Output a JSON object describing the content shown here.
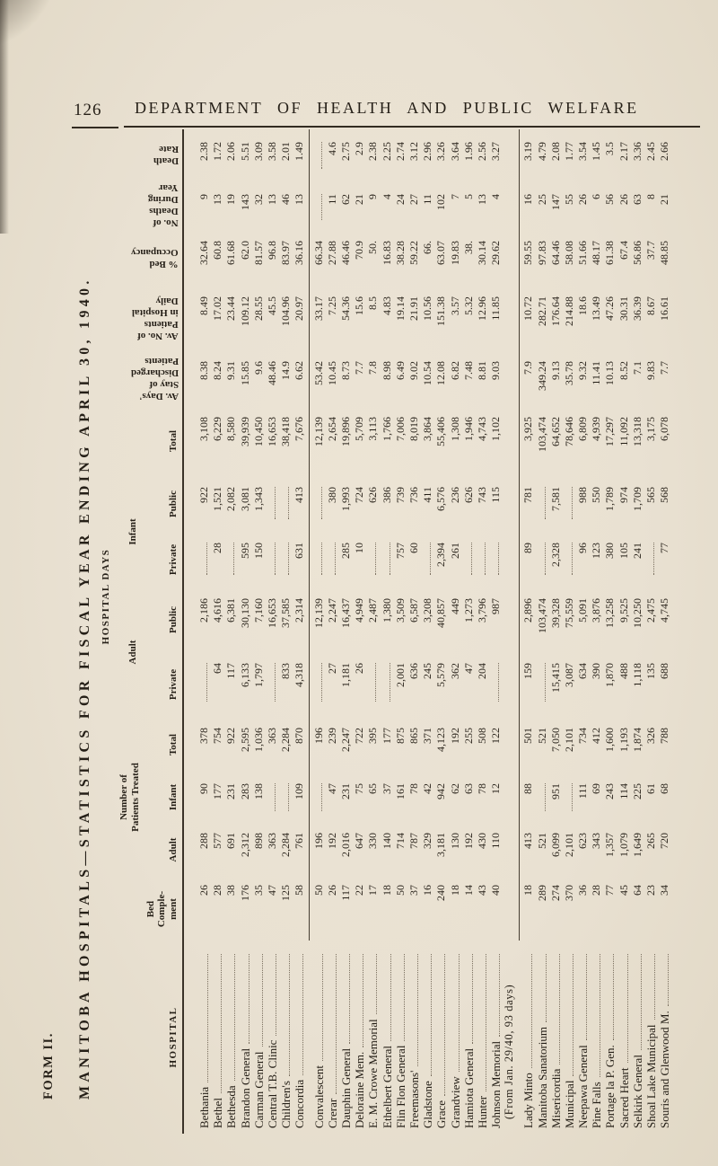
{
  "page": {
    "number": "126",
    "header": "DEPARTMENT OF HEALTH AND PUBLIC WELFARE"
  },
  "form_label": "FORM II.",
  "table_title": "MANITOBA HOSPITALS—STATISTICS FOR FISCAL YEAR ENDING APRIL 30, 1940.",
  "columns": {
    "hospital": "HOSPITAL",
    "bed": "Bed\nComple-\nment",
    "patients_group": "Number of\nPatients Treated",
    "adult": "Adult",
    "infant": "Infant",
    "total": "Total",
    "days_group": "HOSPITAL DAYS",
    "days_adult": "Adult",
    "days_infant": "Infant",
    "private": "Private",
    "public": "Public",
    "days_total": "Total",
    "av_stay": "Av. Days'\nStay of\nDischarged\nPatients",
    "av_daily": "Av. No. of\nPatients\nin Hospital\nDaily",
    "occupancy": "% Bed\nOccupancy",
    "deaths": "No. of\nDeaths\nDuring\nYear",
    "death_rate": "Death\nRate"
  },
  "table": {
    "rows": [
      {
        "group": 1,
        "name": "Bethania",
        "bed": "26",
        "pat_adult": "288",
        "pat_infant": "90",
        "pat_total": "378",
        "dap": "",
        "dapu": "2,186",
        "dip": "",
        "dipu": "922",
        "dtot": "3,108",
        "stay": "8.38",
        "daily": "8.49",
        "occ": "32.64",
        "deaths": "9",
        "rate": "2.38"
      },
      {
        "group": 1,
        "name": "Bethel",
        "bed": "28",
        "pat_adult": "577",
        "pat_infant": "177",
        "pat_total": "754",
        "dap": "64",
        "dapu": "4,616",
        "dip": "28",
        "dipu": "1,521",
        "dtot": "6,229",
        "stay": "8.24",
        "daily": "17.02",
        "occ": "60.8",
        "deaths": "13",
        "rate": "1.72"
      },
      {
        "group": 1,
        "name": "Bethesda",
        "bed": "38",
        "pat_adult": "691",
        "pat_infant": "231",
        "pat_total": "922",
        "dap": "117",
        "dapu": "6,381",
        "dip": "",
        "dipu": "2,082",
        "dtot": "8,580",
        "stay": "9.31",
        "daily": "23.44",
        "occ": "61.68",
        "deaths": "19",
        "rate": "2.06"
      },
      {
        "group": 1,
        "name": "Brandon General",
        "bed": "176",
        "pat_adult": "2,312",
        "pat_infant": "283",
        "pat_total": "2,595",
        "dap": "6,133",
        "dapu": "30,130",
        "dip": "595",
        "dipu": "3,081",
        "dtot": "39,939",
        "stay": "15.85",
        "daily": "109.12",
        "occ": "62.0",
        "deaths": "143",
        "rate": "5.51"
      },
      {
        "group": 1,
        "name": "Carman General",
        "bed": "35",
        "pat_adult": "898",
        "pat_infant": "138",
        "pat_total": "1,036",
        "dap": "1,797",
        "dapu": "7,160",
        "dip": "150",
        "dipu": "1,343",
        "dtot": "10,450",
        "stay": "9.6",
        "daily": "28.55",
        "occ": "81.57",
        "deaths": "32",
        "rate": "3.09"
      },
      {
        "group": 1,
        "name": "Central T.B. Clinic",
        "bed": "47",
        "pat_adult": "363",
        "pat_infant": "",
        "pat_total": "363",
        "dap": "",
        "dapu": "16,653",
        "dip": "",
        "dipu": "",
        "dtot": "16,653",
        "stay": "48.46",
        "daily": "45.5",
        "occ": "96.8",
        "deaths": "13",
        "rate": "3.58"
      },
      {
        "group": 1,
        "name": "Children's",
        "bed": "125",
        "pat_adult": "2,284",
        "pat_infant": "",
        "pat_total": "2,284",
        "dap": "833",
        "dapu": "37,585",
        "dip": "",
        "dipu": "",
        "dtot": "38,418",
        "stay": "14.9",
        "daily": "104.96",
        "occ": "83.97",
        "deaths": "46",
        "rate": "2.01"
      },
      {
        "group": 1,
        "name": "Concordia",
        "bed": "58",
        "pat_adult": "761",
        "pat_infant": "109",
        "pat_total": "870",
        "dap": "4,318",
        "dapu": "2,314",
        "dip": "631",
        "dipu": "413",
        "dtot": "7,676",
        "stay": "6.62",
        "daily": "20.97",
        "occ": "36.16",
        "deaths": "13",
        "rate": "1.49"
      },
      {
        "group": 2,
        "name": "Convalescent",
        "bed": "50",
        "pat_adult": "196",
        "pat_infant": "",
        "pat_total": "196",
        "dap": "",
        "dapu": "12,139",
        "dip": "",
        "dipu": "",
        "dtot": "12,139",
        "stay": "53.42",
        "daily": "33.17",
        "occ": "66.34",
        "deaths": "",
        "rate": ""
      },
      {
        "group": 2,
        "name": "Crerar",
        "bed": "26",
        "pat_adult": "192",
        "pat_infant": "47",
        "pat_total": "239",
        "dap": "27",
        "dapu": "2,247",
        "dip": "",
        "dipu": "380",
        "dtot": "2,654",
        "stay": "10.45",
        "daily": "7.25",
        "occ": "27.88",
        "deaths": "11",
        "rate": "4.6"
      },
      {
        "group": 2,
        "name": "Dauphin General",
        "bed": "117",
        "pat_adult": "2,016",
        "pat_infant": "231",
        "pat_total": "2,247",
        "dap": "1,181",
        "dapu": "16,437",
        "dip": "285",
        "dipu": "1,993",
        "dtot": "19,896",
        "stay": "8.73",
        "daily": "54.36",
        "occ": "46.46",
        "deaths": "62",
        "rate": "2.75"
      },
      {
        "group": 2,
        "name": "Deloraine Mem.",
        "bed": "22",
        "pat_adult": "647",
        "pat_infant": "75",
        "pat_total": "722",
        "dap": "26",
        "dapu": "4,949",
        "dip": "10",
        "dipu": "724",
        "dtot": "5,709",
        "stay": "7.7",
        "daily": "15.6",
        "occ": "70.9",
        "deaths": "21",
        "rate": "2.9"
      },
      {
        "group": 2,
        "name": "E. M. Crowe Memorial",
        "bed": "17",
        "pat_adult": "330",
        "pat_infant": "65",
        "pat_total": "395",
        "dap": "",
        "dapu": "2,487",
        "dip": "",
        "dipu": "626",
        "dtot": "3,113",
        "stay": "7.8",
        "daily": "8.5",
        "occ": "50.",
        "deaths": "9",
        "rate": "2.38"
      },
      {
        "group": 2,
        "name": "Ethelbert General",
        "bed": "18",
        "pat_adult": "140",
        "pat_infant": "37",
        "pat_total": "177",
        "dap": "",
        "dapu": "1,380",
        "dip": "",
        "dipu": "386",
        "dtot": "1,766",
        "stay": "8.98",
        "daily": "4.83",
        "occ": "16.83",
        "deaths": "4",
        "rate": "2.25"
      },
      {
        "group": 2,
        "name": "Flin Flon General",
        "bed": "50",
        "pat_adult": "714",
        "pat_infant": "161",
        "pat_total": "875",
        "dap": "2,001",
        "dapu": "3,509",
        "dip": "757",
        "dipu": "739",
        "dtot": "7,006",
        "stay": "6.49",
        "daily": "19.14",
        "occ": "38.28",
        "deaths": "24",
        "rate": "2.74"
      },
      {
        "group": 2,
        "name": "Freemasons'",
        "bed": "37",
        "pat_adult": "787",
        "pat_infant": "78",
        "pat_total": "865",
        "dap": "636",
        "dapu": "6,587",
        "dip": "60",
        "dipu": "736",
        "dtot": "8,019",
        "stay": "9.02",
        "daily": "21.91",
        "occ": "59.22",
        "deaths": "27",
        "rate": "3.12"
      },
      {
        "group": 2,
        "name": "Gladstone",
        "bed": "16",
        "pat_adult": "329",
        "pat_infant": "42",
        "pat_total": "371",
        "dap": "245",
        "dapu": "3,208",
        "dip": "",
        "dipu": "411",
        "dtot": "3,864",
        "stay": "10.54",
        "daily": "10.56",
        "occ": "66.",
        "deaths": "11",
        "rate": "2.96"
      },
      {
        "group": 2,
        "name": "Grace",
        "bed": "240",
        "pat_adult": "3,181",
        "pat_infant": "942",
        "pat_total": "4,123",
        "dap": "5,579",
        "dapu": "40,857",
        "dip": "2,394",
        "dipu": "6,576",
        "dtot": "55,406",
        "stay": "12.08",
        "daily": "151.38",
        "occ": "63.07",
        "deaths": "102",
        "rate": "3.26"
      },
      {
        "group": 2,
        "name": "Grandview",
        "bed": "18",
        "pat_adult": "130",
        "pat_infant": "62",
        "pat_total": "192",
        "dap": "362",
        "dapu": "449",
        "dip": "261",
        "dipu": "236",
        "dtot": "1,308",
        "stay": "6.82",
        "daily": "3.57",
        "occ": "19.83",
        "deaths": "7",
        "rate": "3.64"
      },
      {
        "group": 2,
        "name": "Hamiota General",
        "bed": "14",
        "pat_adult": "192",
        "pat_infant": "63",
        "pat_total": "255",
        "dap": "47",
        "dapu": "1,273",
        "dip": "",
        "dipu": "626",
        "dtot": "1,946",
        "stay": "7.48",
        "daily": "5.32",
        "occ": "38.",
        "deaths": "5",
        "rate": "1.96"
      },
      {
        "group": 2,
        "name": "Hunter",
        "bed": "43",
        "pat_adult": "430",
        "pat_infant": "78",
        "pat_total": "508",
        "dap": "204",
        "dapu": "3,796",
        "dip": "",
        "dipu": "743",
        "dtot": "4,743",
        "stay": "8.81",
        "daily": "12.96",
        "occ": "30.14",
        "deaths": "13",
        "rate": "2.56"
      },
      {
        "group": 2,
        "name": "Johnson Memorial",
        "note": "(From Jan. 29/40, 93 days)",
        "bed": "40",
        "pat_adult": "110",
        "pat_infant": "12",
        "pat_total": "122",
        "dap": "",
        "dapu": "987",
        "dip": "",
        "dipu": "115",
        "dtot": "1,102",
        "stay": "9.03",
        "daily": "11.85",
        "occ": "29.62",
        "deaths": "4",
        "rate": "3.27"
      },
      {
        "group": 3,
        "name": "Lady Minto",
        "bed": "18",
        "pat_adult": "413",
        "pat_infant": "88",
        "pat_total": "501",
        "dap": "159",
        "dapu": "2,896",
        "dip": "89",
        "dipu": "781",
        "dtot": "3,925",
        "stay": "7.9",
        "daily": "10.72",
        "occ": "59.55",
        "deaths": "16",
        "rate": "3.19"
      },
      {
        "group": 3,
        "name": "Manitoba Sanatorium",
        "bed": "289",
        "pat_adult": "521",
        "pat_infant": "",
        "pat_total": "521",
        "dap": "",
        "dapu": "103,474",
        "dip": "",
        "dipu": "",
        "dtot": "103,474",
        "stay": "349.24",
        "daily": "282.71",
        "occ": "97.83",
        "deaths": "25",
        "rate": "4.79"
      },
      {
        "group": 3,
        "name": "Misericordia",
        "bed": "274",
        "pat_adult": "6,099",
        "pat_infant": "951",
        "pat_total": "7,050",
        "dap": "15,415",
        "dapu": "39,328",
        "dip": "2,328",
        "dipu": "7,581",
        "dtot": "64,652",
        "stay": "9.13",
        "daily": "176.64",
        "occ": "64.46",
        "deaths": "147",
        "rate": "2.08"
      },
      {
        "group": 3,
        "name": "Municipal",
        "bed": "370",
        "pat_adult": "2,101",
        "pat_infant": "",
        "pat_total": "2,101",
        "dap": "3,087",
        "dapu": "75,559",
        "dip": "",
        "dipu": "",
        "dtot": "78,646",
        "stay": "35.78",
        "daily": "214.88",
        "occ": "58.08",
        "deaths": "55",
        "rate": "1.77"
      },
      {
        "group": 3,
        "name": "Neepawa General",
        "bed": "36",
        "pat_adult": "623",
        "pat_infant": "111",
        "pat_total": "734",
        "dap": "634",
        "dapu": "5,091",
        "dip": "96",
        "dipu": "988",
        "dtot": "6,809",
        "stay": "9.32",
        "daily": "18.6",
        "occ": "51.66",
        "deaths": "26",
        "rate": "3.54"
      },
      {
        "group": 3,
        "name": "Pine Falls",
        "bed": "28",
        "pat_adult": "343",
        "pat_infant": "69",
        "pat_total": "412",
        "dap": "390",
        "dapu": "3,876",
        "dip": "123",
        "dipu": "550",
        "dtot": "4,939",
        "stay": "11.41",
        "daily": "13.49",
        "occ": "48.17",
        "deaths": "6",
        "rate": "1.45"
      },
      {
        "group": 3,
        "name": "Portage la P. Gen.",
        "bed": "77",
        "pat_adult": "1,357",
        "pat_infant": "243",
        "pat_total": "1,600",
        "dap": "1,870",
        "dapu": "13,258",
        "dip": "380",
        "dipu": "1,789",
        "dtot": "17,297",
        "stay": "10.13",
        "daily": "47.26",
        "occ": "61.38",
        "deaths": "56",
        "rate": "3.5"
      },
      {
        "group": 3,
        "name": "Sacred Heart",
        "bed": "45",
        "pat_adult": "1,079",
        "pat_infant": "114",
        "pat_total": "1,193",
        "dap": "488",
        "dapu": "9,525",
        "dip": "105",
        "dipu": "974",
        "dtot": "11,092",
        "stay": "8.52",
        "daily": "30.31",
        "occ": "67.4",
        "deaths": "26",
        "rate": "2.17"
      },
      {
        "group": 3,
        "name": "Selkirk General",
        "bed": "64",
        "pat_adult": "1,649",
        "pat_infant": "225",
        "pat_total": "1,874",
        "dap": "1,118",
        "dapu": "10,250",
        "dip": "241",
        "dipu": "1,709",
        "dtot": "13,318",
        "stay": "7.1",
        "daily": "36.39",
        "occ": "56.86",
        "deaths": "63",
        "rate": "3.36"
      },
      {
        "group": 3,
        "name": "Shoal Lake Municipal",
        "bed": "23",
        "pat_adult": "265",
        "pat_infant": "61",
        "pat_total": "326",
        "dap": "135",
        "dapu": "2,475",
        "dip": "",
        "dipu": "565",
        "dtot": "3,175",
        "stay": "9.83",
        "daily": "8.67",
        "occ": "37.7",
        "deaths": "8",
        "rate": "2.45"
      },
      {
        "group": 3,
        "name": "Souris and Glenwood M.",
        "bed": "34",
        "pat_adult": "720",
        "pat_infant": "68",
        "pat_total": "788",
        "dap": "688",
        "dapu": "4,745",
        "dip": "77",
        "dipu": "568",
        "dtot": "6,078",
        "stay": "7.7",
        "daily": "16.61",
        "occ": "48.85",
        "deaths": "21",
        "rate": "2.66"
      }
    ]
  }
}
